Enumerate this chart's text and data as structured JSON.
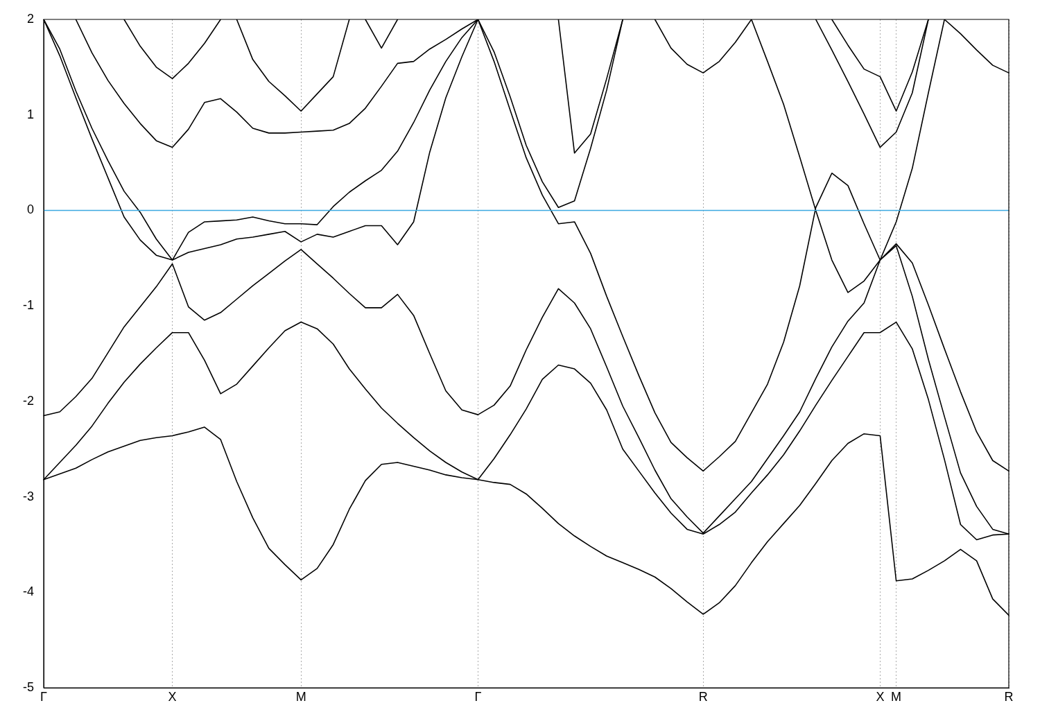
{
  "chart_data": {
    "type": "line",
    "categories": [
      "Γ",
      null,
      null,
      null,
      null,
      null,
      null,
      null,
      "X",
      null,
      null,
      null,
      null,
      null,
      null,
      null,
      "M",
      null,
      null,
      null,
      null,
      null,
      null,
      null,
      null,
      null,
      null,
      "Γ",
      null,
      null,
      null,
      null,
      null,
      null,
      null,
      null,
      null,
      null,
      null,
      null,
      null,
      "R",
      null,
      null,
      null,
      null,
      null,
      null,
      null,
      null,
      null,
      null,
      "X",
      "M",
      null,
      null,
      null,
      null,
      null,
      null,
      "R"
    ],
    "ylim": [
      -5,
      2
    ],
    "yticks": [
      -5,
      -4,
      -3,
      -2,
      -1,
      0,
      1,
      2
    ],
    "grid": "x",
    "ref_lines": [
      {
        "axis": "y",
        "value": 0,
        "color": "#3ba9e0"
      }
    ],
    "series": [
      {
        "color": "#000000",
        "values": [
          -2.82,
          -2.76,
          -2.7,
          -2.61,
          -2.53,
          -2.47,
          -2.41,
          -2.38,
          -2.36,
          -2.32,
          -2.27,
          -2.4,
          -2.84,
          -3.22,
          -3.54,
          -3.71,
          -3.87,
          -3.75,
          -3.5,
          -3.13,
          -2.83,
          -2.66,
          -2.64,
          -2.68,
          -2.72,
          -2.77,
          -2.8,
          -2.82,
          -2.85,
          -2.87,
          -2.97,
          -3.12,
          -3.28,
          -3.41,
          -3.52,
          -3.62,
          -3.69,
          -3.76,
          -3.84,
          -3.96,
          -4.1,
          -4.23,
          -4.11,
          -3.93,
          -3.69,
          -3.47,
          -3.28,
          -3.09,
          -2.86,
          -2.62,
          -2.44,
          -2.34,
          -2.36,
          -3.88,
          -3.86,
          -3.77,
          -3.67,
          -3.55,
          -3.67,
          -4.07,
          -4.24
        ]
      },
      {
        "color": "#000000",
        "values": [
          -2.82,
          -2.64,
          -2.46,
          -2.26,
          -2.02,
          -1.8,
          -1.61,
          -1.44,
          -1.28,
          -1.28,
          -1.57,
          -1.92,
          -1.82,
          -1.63,
          -1.44,
          -1.26,
          -1.17,
          -1.24,
          -1.4,
          -1.66,
          -1.87,
          -2.07,
          -2.23,
          -2.38,
          -2.52,
          -2.64,
          -2.74,
          -2.82,
          -2.6,
          -2.35,
          -2.08,
          -1.77,
          -1.62,
          -1.66,
          -1.81,
          -2.09,
          -2.5,
          -2.73,
          -2.96,
          -3.17,
          -3.34,
          -3.39,
          -3.29,
          -3.16,
          -2.96,
          -2.77,
          -2.56,
          -2.31,
          -2.04,
          -1.78,
          -1.53,
          -1.28,
          -1.28,
          -1.17,
          -1.45,
          -1.98,
          -2.61,
          -3.29,
          -3.45,
          -3.4,
          -3.39
        ]
      },
      {
        "color": "#000000",
        "values": [
          -2.15,
          -2.11,
          -1.95,
          -1.76,
          -1.49,
          -1.22,
          -1.01,
          -0.8,
          -0.56,
          -1.01,
          -1.15,
          -1.07,
          -0.93,
          -0.79,
          -0.66,
          -0.53,
          -0.41,
          -0.56,
          -0.71,
          -0.87,
          -1.02,
          -1.02,
          -0.88,
          -1.1,
          -1.5,
          -1.89,
          -2.09,
          -2.14,
          -2.04,
          -1.84,
          -1.46,
          -1.12,
          -0.82,
          -0.97,
          -1.24,
          -1.64,
          -2.05,
          -2.38,
          -2.72,
          -3.02,
          -3.21,
          -3.38,
          -3.2,
          -3.02,
          -2.84,
          -2.6,
          -2.36,
          -2.11,
          -1.76,
          -1.43,
          -1.16,
          -0.97,
          -0.52,
          -0.35,
          -0.55,
          -0.99,
          -1.45,
          -1.9,
          -2.32,
          -2.62,
          -2.73
        ]
      },
      {
        "color": "#000000",
        "values": [
          2,
          1.62,
          1.18,
          0.75,
          0.34,
          -0.07,
          -0.31,
          -0.47,
          -0.52,
          -0.23,
          -0.12,
          -0.11,
          -0.1,
          -0.07,
          -0.11,
          -0.14,
          -0.14,
          -0.15,
          0.04,
          0.19,
          0.31,
          0.42,
          0.62,
          0.92,
          1.26,
          1.56,
          1.81,
          2,
          1.56,
          1.05,
          0.55,
          0.16,
          -0.14,
          -0.12,
          -0.45,
          -0.9,
          -1.32,
          -1.73,
          -2.12,
          -2.43,
          -2.59,
          -2.73,
          -2.58,
          -2.42,
          -2.12,
          -1.82,
          -1.38,
          -0.79,
          0.03,
          0.39,
          0.26,
          -0.14,
          -0.52,
          -0.37,
          -0.9,
          -1.56,
          -2.16,
          -2.75,
          -3.1,
          -3.34,
          -3.39
        ]
      },
      {
        "color": "#000000",
        "values": [
          2,
          1.69,
          1.25,
          0.86,
          0.52,
          0.2,
          -0.02,
          -0.3,
          -0.52,
          -0.44,
          -0.4,
          -0.36,
          -0.3,
          -0.28,
          -0.25,
          -0.22,
          -0.33,
          -0.25,
          -0.28,
          -0.22,
          -0.16,
          -0.16,
          -0.36,
          -0.12,
          0.61,
          1.18,
          1.61,
          2,
          1.66,
          1.19,
          0.68,
          0.3,
          0.03,
          0.1,
          0.65,
          1.26,
          2,
          null,
          null,
          null,
          null,
          null,
          null,
          null,
          null,
          null,
          null,
          null,
          null,
          null,
          null,
          null,
          null,
          null,
          null,
          null,
          null,
          null,
          null,
          null,
          null
        ]
      },
      {
        "color": "#000000",
        "values": [
          null,
          null,
          2,
          1.65,
          1.36,
          1.12,
          0.91,
          0.73,
          0.66,
          0.85,
          1.13,
          1.17,
          1.03,
          0.86,
          0.81,
          0.81,
          0.82,
          0.83,
          0.84,
          0.91,
          1.07,
          1.3,
          1.54,
          1.56,
          1.69,
          1.79,
          1.9,
          2,
          null,
          null,
          null,
          null,
          null,
          null,
          null,
          null,
          null,
          null,
          null,
          null,
          null,
          null,
          null,
          null,
          null,
          null,
          null,
          null,
          null,
          null,
          null,
          null,
          null,
          null,
          null,
          null,
          null,
          null,
          null,
          null,
          null
        ]
      },
      {
        "color": "#000000",
        "values": [
          null,
          null,
          null,
          null,
          null,
          2,
          1.72,
          1.5,
          1.38,
          1.54,
          1.75,
          2,
          null,
          null,
          null,
          null,
          null,
          null,
          null,
          null,
          null,
          null,
          null,
          null,
          null,
          null,
          null,
          null,
          null,
          null,
          null,
          null,
          null,
          null,
          null,
          null,
          null,
          null,
          null,
          null,
          null,
          null,
          null,
          null,
          null,
          null,
          null,
          null,
          null,
          null,
          null,
          null,
          null,
          null,
          null,
          null,
          null,
          null,
          null,
          null,
          null
        ]
      },
      {
        "color": "#000000",
        "values": [
          null,
          null,
          null,
          null,
          null,
          null,
          null,
          null,
          null,
          null,
          null,
          null,
          2,
          1.58,
          1.35,
          1.2,
          1.04,
          1.22,
          1.4,
          2,
          null,
          null,
          null,
          null,
          null,
          null,
          null,
          null,
          null,
          null,
          null,
          null,
          null,
          null,
          null,
          null,
          null,
          null,
          null,
          null,
          null,
          null,
          null,
          null,
          null,
          null,
          null,
          null,
          null,
          null,
          null,
          null,
          null,
          null,
          null,
          null,
          null,
          null,
          null,
          null,
          null
        ]
      },
      {
        "color": "#000000",
        "values": [
          null,
          null,
          null,
          null,
          null,
          null,
          null,
          null,
          null,
          null,
          null,
          null,
          null,
          null,
          null,
          null,
          null,
          null,
          null,
          null,
          2,
          1.7,
          2,
          null,
          null,
          null,
          null,
          null,
          null,
          null,
          null,
          null,
          null,
          null,
          null,
          null,
          null,
          null,
          null,
          null,
          null,
          null,
          null,
          null,
          null,
          null,
          null,
          null,
          null,
          null,
          null,
          null,
          null,
          null,
          null,
          null,
          null,
          null,
          null,
          null,
          null
        ]
      },
      {
        "color": "#000000",
        "values": [
          null,
          null,
          null,
          null,
          null,
          null,
          null,
          null,
          null,
          null,
          null,
          null,
          null,
          null,
          null,
          null,
          null,
          null,
          null,
          null,
          null,
          null,
          null,
          null,
          null,
          null,
          null,
          null,
          null,
          null,
          null,
          null,
          2,
          0.6,
          0.8,
          1.38,
          2,
          null,
          null,
          null,
          null,
          null,
          null,
          null,
          null,
          null,
          null,
          null,
          null,
          null,
          null,
          null,
          null,
          null,
          null,
          null,
          null,
          null,
          null,
          null,
          null
        ]
      },
      {
        "color": "#000000",
        "values": [
          null,
          null,
          null,
          null,
          null,
          null,
          null,
          null,
          null,
          null,
          null,
          null,
          null,
          null,
          null,
          null,
          null,
          null,
          null,
          null,
          null,
          null,
          null,
          null,
          null,
          null,
          null,
          null,
          null,
          null,
          null,
          null,
          null,
          null,
          null,
          null,
          null,
          null,
          2,
          1.7,
          1.53,
          1.44,
          1.56,
          1.76,
          2,
          null,
          null,
          null,
          null,
          null,
          null,
          null,
          null,
          null,
          null,
          null,
          null,
          null,
          null,
          null,
          null
        ]
      },
      {
        "color": "#000000",
        "values": [
          null,
          null,
          null,
          null,
          null,
          null,
          null,
          null,
          null,
          null,
          null,
          null,
          null,
          null,
          null,
          null,
          null,
          null,
          null,
          null,
          null,
          null,
          null,
          null,
          null,
          null,
          null,
          null,
          null,
          null,
          null,
          null,
          null,
          null,
          null,
          null,
          null,
          null,
          null,
          null,
          null,
          null,
          null,
          null,
          2,
          1.56,
          1.11,
          0.56,
          0,
          -0.52,
          -0.86,
          -0.74,
          -0.52,
          -0.12,
          0.44,
          1.23,
          2,
          null,
          null,
          null,
          null
        ]
      },
      {
        "color": "#000000",
        "values": [
          null,
          null,
          null,
          null,
          null,
          null,
          null,
          null,
          null,
          null,
          null,
          null,
          null,
          null,
          null,
          null,
          null,
          null,
          null,
          null,
          null,
          null,
          null,
          null,
          null,
          null,
          null,
          null,
          null,
          null,
          null,
          null,
          null,
          null,
          null,
          null,
          null,
          null,
          null,
          null,
          null,
          null,
          null,
          null,
          null,
          null,
          null,
          null,
          2,
          1.68,
          1.35,
          1.01,
          0.66,
          0.82,
          1.23,
          2,
          null,
          null,
          null,
          null,
          null
        ]
      },
      {
        "color": "#000000",
        "values": [
          null,
          null,
          null,
          null,
          null,
          null,
          null,
          null,
          null,
          null,
          null,
          null,
          null,
          null,
          null,
          null,
          null,
          null,
          null,
          null,
          null,
          null,
          null,
          null,
          null,
          null,
          null,
          null,
          null,
          null,
          null,
          null,
          null,
          null,
          null,
          null,
          null,
          null,
          null,
          null,
          null,
          null,
          null,
          null,
          null,
          null,
          null,
          null,
          null,
          2,
          1.73,
          1.48,
          1.4,
          1.04,
          1.45,
          2,
          null,
          null,
          null,
          null,
          null
        ]
      },
      {
        "color": "#000000",
        "values": [
          null,
          null,
          null,
          null,
          null,
          null,
          null,
          null,
          null,
          null,
          null,
          null,
          null,
          null,
          null,
          null,
          null,
          null,
          null,
          null,
          null,
          null,
          null,
          null,
          null,
          null,
          null,
          null,
          null,
          null,
          null,
          null,
          null,
          null,
          null,
          null,
          null,
          null,
          null,
          null,
          null,
          null,
          null,
          null,
          null,
          null,
          null,
          null,
          null,
          null,
          null,
          null,
          null,
          null,
          null,
          null,
          2,
          1.85,
          1.68,
          1.52,
          1.44
        ]
      }
    ]
  }
}
